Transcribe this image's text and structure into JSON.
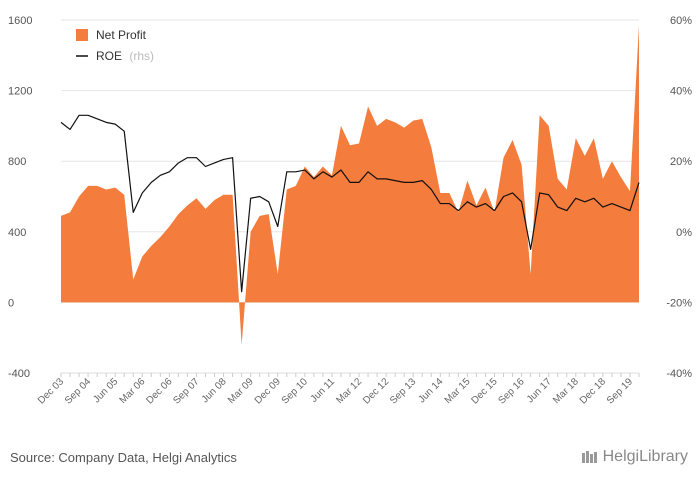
{
  "chart_data": {
    "type": "area+line",
    "title": "",
    "categories": [
      "Dec 03",
      "Mar 04",
      "Jun 04",
      "Sep 04",
      "Dec 04",
      "Mar 05",
      "Jun 05",
      "Sep 05",
      "Dec 05",
      "Mar 06",
      "Jun 06",
      "Sep 06",
      "Dec 06",
      "Mar 07",
      "Jun 07",
      "Sep 07",
      "Dec 07",
      "Mar 08",
      "Jun 08",
      "Sep 08",
      "Dec 08",
      "Mar 09",
      "Jun 09",
      "Sep 09",
      "Dec 09",
      "Mar 10",
      "Jun 10",
      "Sep 10",
      "Dec 10",
      "Mar 11",
      "Jun 11",
      "Sep 11",
      "Dec 11",
      "Mar 12",
      "Jun 12",
      "Sep 12",
      "Dec 12",
      "Mar 13",
      "Jun 13",
      "Sep 13",
      "Dec 13",
      "Mar 14",
      "Jun 14",
      "Sep 14",
      "Dec 14",
      "Mar 15",
      "Jun 15",
      "Sep 15",
      "Dec 15",
      "Mar 16",
      "Jun 16",
      "Sep 16",
      "Dec 16",
      "Mar 17",
      "Jun 17",
      "Sep 17",
      "Dec 17",
      "Mar 18",
      "Jun 18",
      "Sep 18",
      "Dec 18",
      "Mar 19",
      "Jun 19",
      "Sep 19",
      "Dec 19"
    ],
    "x_tick_labels": [
      "Dec 03",
      "Sep 04",
      "Jun 05",
      "Mar 06",
      "Dec 06",
      "Sep 07",
      "Jun 08",
      "Mar 09",
      "Dec 09",
      "Sep 10",
      "Jun 11",
      "Mar 12",
      "Dec 12",
      "Sep 13",
      "Jun 14",
      "Mar 15",
      "Dec 15",
      "Sep 16",
      "Jun 17",
      "Mar 18",
      "Dec 18",
      "Sep 19"
    ],
    "series": [
      {
        "name": "Net Profit",
        "axis": "left",
        "color": "#f47c3c",
        "values": [
          490,
          510,
          600,
          660,
          660,
          640,
          650,
          610,
          130,
          260,
          320,
          370,
          430,
          500,
          550,
          590,
          530,
          580,
          610,
          610,
          -240,
          400,
          490,
          500,
          160,
          640,
          660,
          770,
          710,
          770,
          720,
          1000,
          890,
          900,
          1110,
          1000,
          1040,
          1020,
          990,
          1030,
          1040,
          880,
          620,
          620,
          510,
          690,
          550,
          650,
          510,
          820,
          920,
          780,
          160,
          1060,
          1000,
          700,
          640,
          930,
          830,
          930,
          700,
          800,
          710,
          630,
          1570
        ]
      },
      {
        "name": "ROE",
        "legend_suffix": "(rhs)",
        "axis": "right",
        "color": "#111111",
        "values": [
          31,
          29,
          33,
          33,
          32,
          31,
          30.5,
          28.5,
          5.5,
          11,
          14,
          16,
          17,
          19.5,
          21,
          21,
          18.5,
          19.5,
          20.5,
          21,
          -17,
          9.5,
          10,
          8.5,
          1.5,
          17,
          17,
          17.5,
          15,
          17,
          15.5,
          17.5,
          14,
          14,
          17,
          15,
          15,
          14.5,
          14,
          14,
          14.5,
          12,
          8,
          8,
          6,
          8.5,
          7,
          8,
          6,
          10,
          11,
          8.5,
          -5,
          11,
          10.5,
          7,
          6,
          9.5,
          8.5,
          9.5,
          7,
          8,
          7,
          6,
          14
        ]
      }
    ],
    "y_left": {
      "min": -400,
      "max": 1600,
      "ticks": [
        -400,
        0,
        400,
        800,
        1200,
        1600
      ]
    },
    "y_right": {
      "min": -40,
      "max": 60,
      "ticks": [
        "-40%",
        "-20%",
        "0%",
        "20%",
        "40%",
        "60%"
      ]
    },
    "grid": true,
    "legend_position": "top-left"
  },
  "footer": {
    "source": "Source: Company Data, Helgi Analytics",
    "logo_text": "HelgiLibrary"
  }
}
